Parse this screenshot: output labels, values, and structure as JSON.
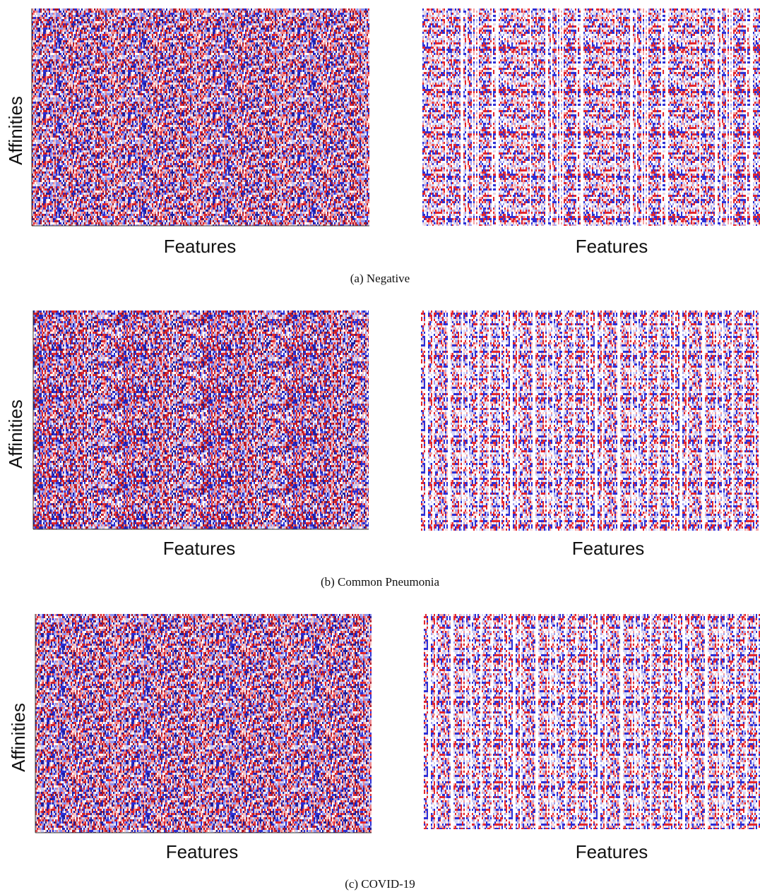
{
  "figure": {
    "panels": [
      {
        "y_label": "Affinities",
        "x_labels": [
          "Features",
          "Features"
        ],
        "caption": "(a) Negative"
      },
      {
        "y_label": "Affinities",
        "x_labels": [
          "Features",
          "Features"
        ],
        "caption": "(b) Common Pneumonia"
      },
      {
        "y_label": "Affinities",
        "x_labels": [
          "Features",
          "Features"
        ],
        "caption": "(c) COVID-19"
      }
    ]
  }
}
